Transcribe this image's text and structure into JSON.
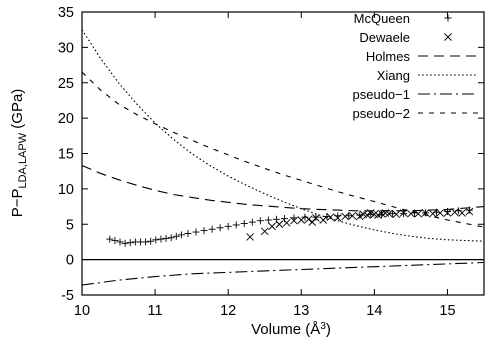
{
  "chart_data": {
    "type": "line",
    "xlabel": "Volume (Å³)",
    "ylabel": "P−P_LDA,LAPW (GPa)",
    "xlim": [
      10,
      15.5
    ],
    "ylim": [
      -5,
      35
    ],
    "x_ticks": [
      "10",
      "11",
      "12",
      "13",
      "14",
      "15"
    ],
    "y_ticks": [
      "-5",
      "0",
      "5",
      "10",
      "15",
      "20",
      "25",
      "30",
      "35"
    ],
    "reference_line_y": 0,
    "grid": false,
    "legend_position": "top-right",
    "series": [
      {
        "name": "McQueen",
        "style": "plus",
        "x": [
          10.38,
          10.45,
          10.52,
          10.59,
          10.66,
          10.73,
          10.8,
          10.87,
          10.94,
          11.01,
          11.08,
          11.15,
          11.22,
          11.29,
          11.36,
          11.45,
          11.56,
          11.67,
          11.78,
          11.89,
          12.0,
          12.11,
          12.22,
          12.33,
          12.44,
          12.55,
          12.66,
          12.77,
          12.9,
          13.05,
          13.2,
          13.35,
          13.5,
          13.65,
          13.8,
          13.95,
          14.1,
          14.25,
          14.4,
          14.55,
          14.7,
          14.85,
          15.0,
          15.15,
          15.3
        ],
        "y": [
          2.9,
          2.7,
          2.5,
          2.3,
          2.4,
          2.5,
          2.5,
          2.5,
          2.6,
          2.8,
          2.9,
          3.0,
          3.1,
          3.3,
          3.5,
          3.7,
          3.9,
          4.1,
          4.3,
          4.5,
          4.7,
          4.9,
          5.1,
          5.3,
          5.5,
          5.6,
          5.7,
          5.8,
          5.9,
          6.0,
          6.0,
          6.1,
          6.2,
          6.2,
          6.3,
          6.4,
          6.4,
          6.5,
          6.5,
          6.6,
          6.6,
          6.7,
          6.8,
          6.9,
          7.0
        ]
      },
      {
        "name": "Dewaele",
        "style": "cross",
        "x": [
          12.3,
          12.5,
          12.6,
          12.7,
          12.8,
          12.9,
          13.0,
          13.1,
          13.15,
          13.2,
          13.3,
          13.4,
          13.5,
          13.6,
          13.7,
          13.8,
          13.85,
          13.9,
          13.95,
          14.0,
          14.05,
          14.1,
          14.15,
          14.2,
          14.3,
          14.4,
          14.5,
          14.6,
          14.7,
          14.8,
          14.9,
          15.0,
          15.1,
          15.2,
          15.3
        ],
        "y": [
          3.2,
          4.0,
          4.7,
          5.0,
          5.2,
          5.5,
          5.6,
          5.7,
          5.3,
          5.9,
          5.6,
          6.0,
          5.9,
          6.1,
          6.2,
          6.1,
          6.4,
          6.3,
          6.6,
          6.4,
          6.3,
          6.5,
          6.6,
          6.5,
          6.4,
          6.6,
          6.5,
          6.5,
          6.6,
          6.5,
          6.6,
          6.6,
          6.7,
          6.6,
          6.8
        ]
      },
      {
        "name": "Holmes",
        "style": "long-dash",
        "x": [
          10.0,
          10.25,
          10.5,
          10.75,
          11.0,
          11.25,
          11.5,
          11.75,
          12.0,
          12.25,
          12.5,
          12.75,
          13.0,
          13.25,
          13.5,
          13.75,
          14.0,
          14.25,
          14.5,
          14.75,
          15.0,
          15.25,
          15.5
        ],
        "y": [
          13.3,
          12.2,
          11.3,
          10.5,
          9.8,
          9.2,
          8.8,
          8.4,
          8.1,
          7.8,
          7.6,
          7.4,
          7.2,
          7.1,
          7.0,
          6.9,
          6.9,
          6.9,
          6.9,
          7.0,
          7.1,
          7.3,
          7.5
        ]
      },
      {
        "name": "Xiang",
        "style": "dotted",
        "x": [
          10.0,
          10.25,
          10.5,
          10.75,
          11.0,
          11.25,
          11.5,
          11.75,
          12.0,
          12.25,
          12.5,
          12.75,
          13.0,
          13.25,
          13.5,
          13.75,
          14.0,
          14.25,
          14.5,
          14.75,
          15.0,
          15.25,
          15.5
        ],
        "y": [
          32.5,
          28.5,
          25.0,
          22.0,
          19.3,
          17.0,
          15.0,
          13.3,
          11.8,
          10.5,
          9.3,
          8.2,
          7.2,
          6.3,
          5.5,
          4.8,
          4.2,
          3.7,
          3.3,
          3.0,
          2.8,
          2.7,
          2.6
        ]
      },
      {
        "name": "pseudo−1",
        "style": "dash-dot",
        "x": [
          10.0,
          10.5,
          11.0,
          11.5,
          12.0,
          12.5,
          13.0,
          13.5,
          14.0,
          14.5,
          15.0,
          15.5
        ],
        "y": [
          -3.6,
          -2.9,
          -2.4,
          -2.0,
          -1.8,
          -1.6,
          -1.4,
          -1.2,
          -1.0,
          -0.8,
          -0.6,
          -0.4
        ]
      },
      {
        "name": "pseudo−2",
        "style": "short-dash",
        "x": [
          10.0,
          10.25,
          10.5,
          10.75,
          11.0,
          11.25,
          11.5,
          11.75,
          12.0,
          12.25,
          12.5,
          12.75,
          13.0,
          13.25,
          13.5,
          13.75,
          14.0,
          14.25,
          14.5,
          14.75,
          15.0,
          15.25,
          15.5
        ],
        "y": [
          26.5,
          24.0,
          22.0,
          20.5,
          19.2,
          18.0,
          16.9,
          15.8,
          14.8,
          13.8,
          12.9,
          12.0,
          11.2,
          10.4,
          9.6,
          8.9,
          8.2,
          7.5,
          6.8,
          6.2,
          5.6,
          5.1,
          4.6
        ]
      }
    ]
  }
}
